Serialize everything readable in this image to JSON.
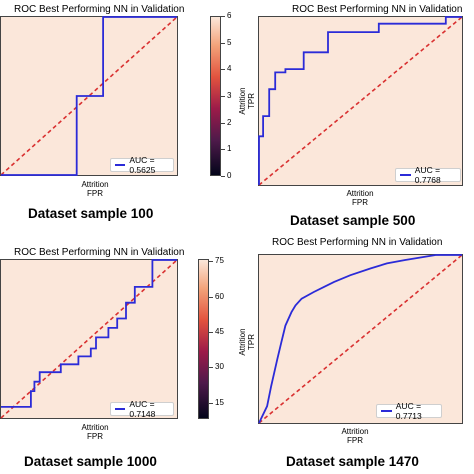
{
  "panels": [
    {
      "title": "ROC Best Performing NN in Validation",
      "xlabel_top": "Attrition",
      "xlabel": "FPR",
      "ylabel": "",
      "legend": "AUC = 0.5625",
      "caption": "Dataset sample 100",
      "colorbar": {
        "ticks": [
          "6",
          "5",
          "4",
          "3",
          "2",
          "1",
          "0"
        ],
        "min": 0,
        "max": 6
      }
    },
    {
      "title": "ROC Best Performing NN in Validation",
      "xlabel_top": "Attrition",
      "xlabel": "FPR",
      "ylabel": "Attrition\nTPR",
      "legend": "AUC = 0.7768",
      "caption": "Dataset sample 500",
      "colorbar": null
    },
    {
      "title": "ROC Best Performing NN in Validation",
      "xlabel_top": "Attrition",
      "xlabel": "FPR",
      "ylabel": "",
      "legend": "AUC = 0.7148",
      "caption": "Dataset sample 1000",
      "colorbar": {
        "ticks": [
          "75",
          "60",
          "45",
          "30",
          "15"
        ],
        "min": 8,
        "max": 76
      }
    },
    {
      "title": "ROC Best Performing NN in Validation",
      "xlabel_top": "Attrition",
      "xlabel": "FPR",
      "ylabel": "Attrition\nTPR",
      "legend": "AUC = 0.7713",
      "caption": "Dataset sample 1470",
      "colorbar": null
    }
  ],
  "chart_data": [
    {
      "type": "line",
      "title": "ROC Best Performing NN in Validation",
      "xlabel": "Attrition FPR",
      "ylabel": "",
      "xlim": [
        0,
        1
      ],
      "ylim": [
        0,
        1
      ],
      "series": [
        {
          "name": "AUC = 0.5625",
          "x": [
            0.0,
            0.43,
            0.43,
            0.58,
            0.58,
            1.0
          ],
          "y": [
            0.0,
            0.0,
            0.5,
            0.5,
            1.0,
            1.0
          ]
        },
        {
          "x": [
            0,
            1
          ],
          "y": [
            0,
            1
          ]
        }
      ]
    },
    {
      "type": "line",
      "title": "ROC Best Performing NN in Validation",
      "xlabel": "Attrition FPR",
      "ylabel": "Attrition TPR",
      "xlim": [
        0,
        1
      ],
      "ylim": [
        0,
        1
      ],
      "series": [
        {
          "name": "AUC = 0.7768",
          "x": [
            0.0,
            0.0,
            0.02,
            0.02,
            0.05,
            0.05,
            0.08,
            0.08,
            0.13,
            0.13,
            0.22,
            0.22,
            0.34,
            0.34,
            0.59,
            0.59,
            0.92,
            0.92,
            1.0
          ],
          "y": [
            0.0,
            0.29,
            0.29,
            0.41,
            0.41,
            0.57,
            0.57,
            0.67,
            0.67,
            0.69,
            0.69,
            0.79,
            0.79,
            0.91,
            0.91,
            0.96,
            0.96,
            1.0,
            1.0
          ]
        },
        {
          "x": [
            0,
            1
          ],
          "y": [
            0,
            1
          ]
        }
      ]
    },
    {
      "type": "line",
      "title": "ROC Best Performing NN in Validation",
      "xlabel": "Attrition FPR",
      "ylabel": "",
      "xlim": [
        0,
        1
      ],
      "ylim": [
        0,
        1
      ],
      "series": [
        {
          "name": "AUC = 0.7148",
          "x": [
            0.0,
            0.17,
            0.17,
            0.19,
            0.19,
            0.22,
            0.22,
            0.34,
            0.34,
            0.44,
            0.44,
            0.51,
            0.51,
            0.54,
            0.54,
            0.61,
            0.61,
            0.66,
            0.66,
            0.71,
            0.71,
            0.76,
            0.76,
            0.86,
            0.86,
            1.0
          ],
          "y": [
            0.07,
            0.07,
            0.17,
            0.17,
            0.23,
            0.23,
            0.29,
            0.29,
            0.34,
            0.34,
            0.39,
            0.39,
            0.44,
            0.44,
            0.51,
            0.51,
            0.57,
            0.57,
            0.63,
            0.63,
            0.73,
            0.73,
            0.83,
            0.83,
            1.0,
            1.0
          ]
        },
        {
          "x": [
            0,
            1
          ],
          "y": [
            0,
            1
          ]
        }
      ]
    },
    {
      "type": "line",
      "title": "ROC Best Performing NN in Validation",
      "xlabel": "Attrition FPR",
      "ylabel": "Attrition TPR",
      "xlim": [
        0,
        1
      ],
      "ylim": [
        0,
        1
      ],
      "series": [
        {
          "name": "AUC = 0.7713",
          "x": [
            0.0,
            0.04,
            0.04,
            0.06,
            0.06,
            0.09,
            0.09,
            0.11,
            0.11,
            0.13,
            0.13,
            0.16,
            0.16,
            0.18,
            0.18,
            0.21,
            0.21,
            0.27,
            0.27,
            0.32,
            0.32,
            0.37,
            0.37,
            0.45,
            0.45,
            0.55,
            0.55,
            0.63,
            0.63,
            0.72,
            0.72,
            0.87,
            0.87,
            1.0
          ],
          "y": [
            0.0,
            0.1,
            0.1,
            0.22,
            0.22,
            0.38,
            0.38,
            0.48,
            0.48,
            0.58,
            0.58,
            0.66,
            0.66,
            0.7,
            0.7,
            0.74,
            0.74,
            0.78,
            0.78,
            0.81,
            0.81,
            0.84,
            0.84,
            0.88,
            0.88,
            0.92,
            0.92,
            0.95,
            0.95,
            0.97,
            0.97,
            1.0,
            1.0,
            1.0
          ]
        },
        {
          "x": [
            0,
            1
          ],
          "y": [
            0,
            1
          ]
        }
      ]
    }
  ],
  "colors": {
    "roc": "#2b2bd8",
    "diagonal": "#d93030",
    "plot_bg": "#fbe7da"
  }
}
